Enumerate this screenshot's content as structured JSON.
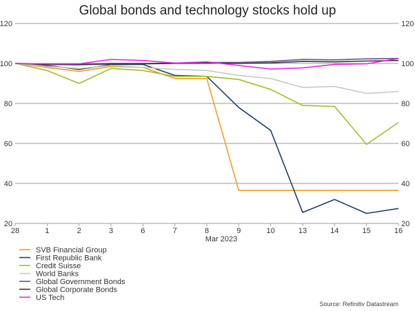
{
  "chart_data": {
    "type": "line",
    "title": "Global bonds and technology stocks hold up",
    "xlabel": "Mar 2023",
    "ylabel": "",
    "categories": [
      "28",
      "1",
      "2",
      "3",
      "6",
      "7",
      "8",
      "9",
      "10",
      "13",
      "14",
      "15",
      "16"
    ],
    "ylim": [
      20,
      120
    ],
    "yticks": [
      20,
      40,
      60,
      80,
      100,
      120
    ],
    "grid": true,
    "legend_position": "bottom-left",
    "series": [
      {
        "name": "SVB Financial Group",
        "color": "#F39C1F",
        "values": [
          100,
          98,
          96,
          98.5,
          98,
          92.5,
          92.5,
          36.5,
          36.5,
          36.5,
          36.5,
          36.5,
          36.5
        ]
      },
      {
        "name": "First Republic Bank",
        "color": "#1B3F66",
        "values": [
          100,
          99,
          97,
          99.5,
          99.5,
          94,
          93.5,
          78,
          66.5,
          25.5,
          32,
          25,
          27.5
        ]
      },
      {
        "name": "Credit Suisse",
        "color": "#9BBF2A",
        "values": [
          100,
          96.5,
          90,
          97.5,
          96.5,
          93.5,
          93.5,
          92,
          87,
          79,
          78.5,
          59.5,
          70.5
        ]
      },
      {
        "name": "World Banks",
        "color": "#C8C8C8",
        "values": [
          100,
          98.5,
          97.5,
          99,
          98,
          97,
          96.5,
          94,
          92.5,
          88,
          88.5,
          85,
          86
        ]
      },
      {
        "name": "Global Government Bonds",
        "color": "#6A4C93",
        "values": [
          100,
          99.8,
          99.5,
          100,
          100,
          100.2,
          100.5,
          100.5,
          101,
          102,
          101.8,
          102.3,
          102.5
        ]
      },
      {
        "name": "Global Corporate Bonds",
        "color": "#333333",
        "values": [
          100,
          99.5,
          99.3,
          99.8,
          99.8,
          100,
          100.2,
          100,
          100.3,
          101,
          100.8,
          101.2,
          101.5
        ]
      },
      {
        "name": "US Tech",
        "color": "#E62AE6",
        "values": [
          100,
          99.8,
          99.8,
          102,
          101.5,
          100.2,
          100.8,
          99,
          97.2,
          97.8,
          99.5,
          99.8,
          102.5
        ]
      }
    ],
    "source": "Source: Refinitiv Datastream"
  }
}
